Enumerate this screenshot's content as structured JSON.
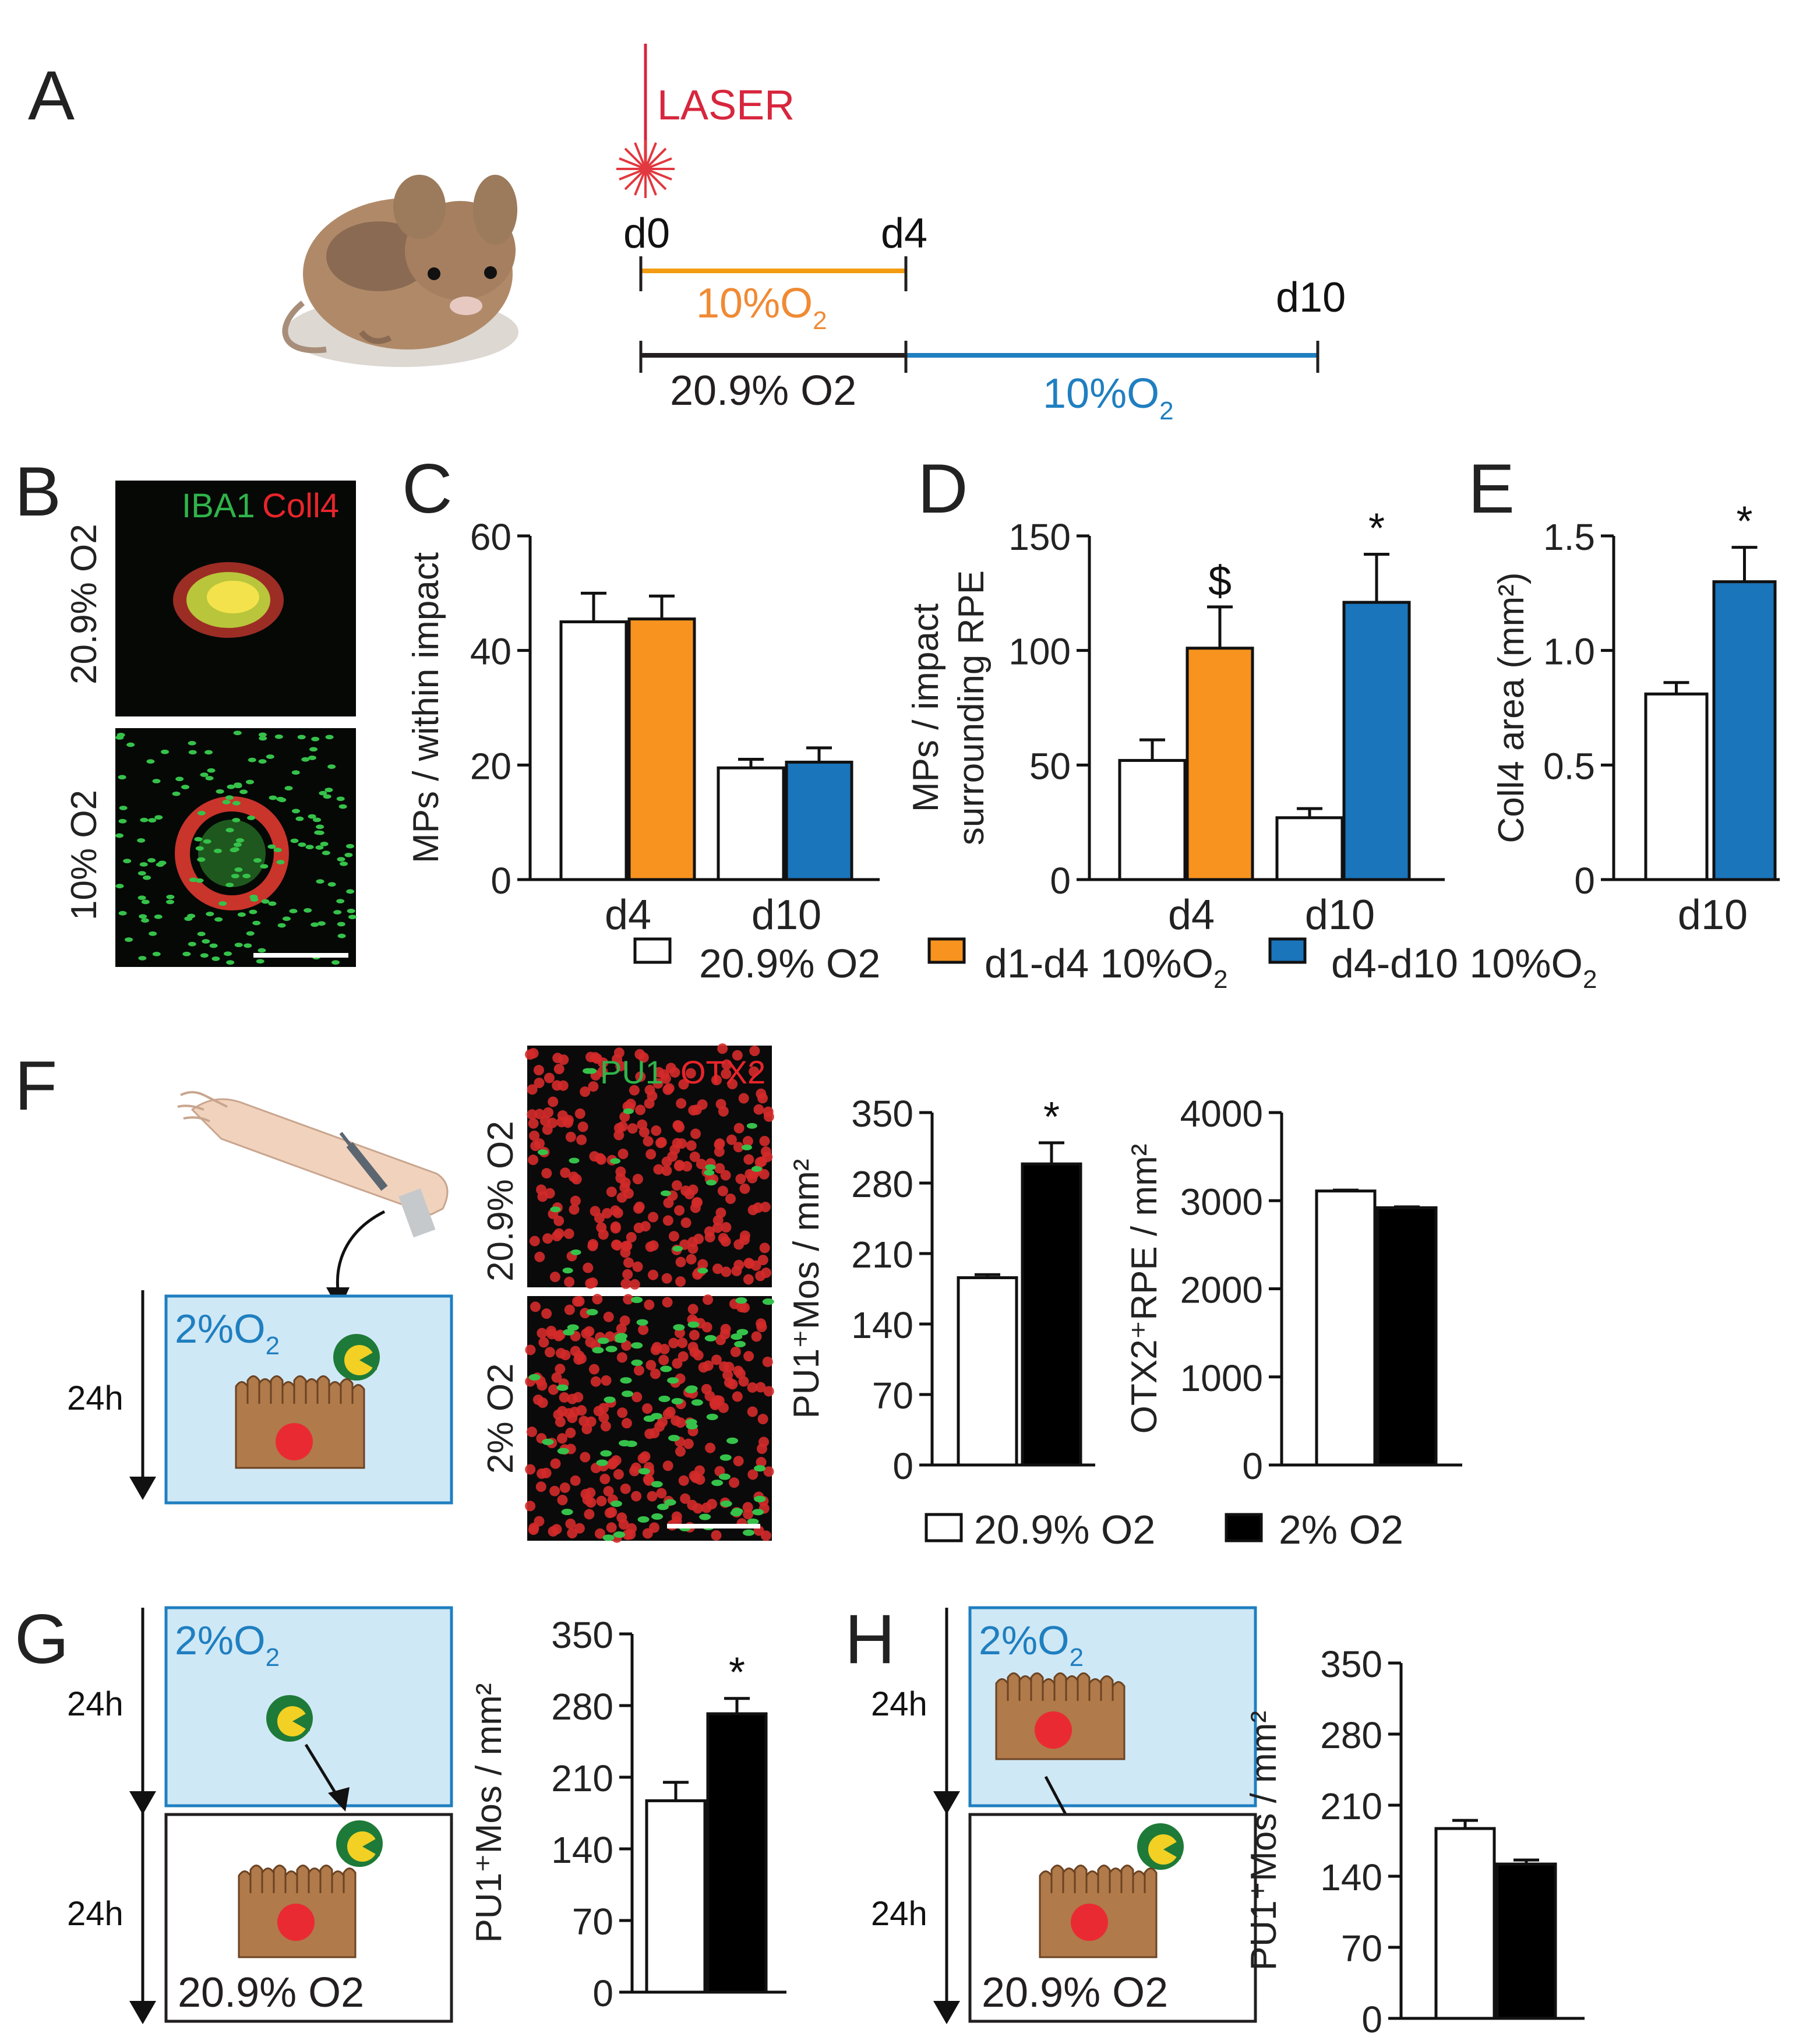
{
  "figure": {
    "panel_letters": [
      "A",
      "B",
      "C",
      "D",
      "E",
      "F",
      "G",
      "H"
    ]
  },
  "panel_a": {
    "laser_label": "LASER",
    "day_labels": [
      "d0",
      "d4",
      "d10"
    ],
    "top_line_label": "10%O",
    "top_line_sub": "2",
    "bottom_left_label": "20.9% O",
    "bottom_left_sub": "2",
    "bottom_right_label": "10%O",
    "bottom_right_sub": "2",
    "colors": {
      "laser": "#d7263d",
      "orange": "#f39c12",
      "blue": "#1f7fc0",
      "dark": "#231f20"
    }
  },
  "panel_b": {
    "stain_green": "IBA1",
    "stain_red": "Coll4",
    "row_top_label": "20.9% O2",
    "row_bottom_label": "10% O2"
  },
  "panel_f": {
    "stain_green": "PU1",
    "stain_red": "OTX2",
    "row_top_label": "20.9% O2",
    "row_bottom_label": "2% O2",
    "box_label": "2%O",
    "box_sub": "2",
    "time_label": "24h"
  },
  "panel_g": {
    "box_label": "2%O",
    "box_sub": "2",
    "bottom_box_label": "20.9% O2",
    "time_top": "24h",
    "time_bottom": "24h"
  },
  "panel_h": {
    "box_label": "2%O",
    "box_sub": "2",
    "bottom_box_label": "20.9% O2",
    "time_top": "24h",
    "time_bottom": "24h"
  },
  "legend_cde": {
    "items": [
      {
        "label": "20.9% O2",
        "color": "#ffffff"
      },
      {
        "label": "d1-d4 10%O",
        "sub": "2",
        "color": "#f7931e"
      },
      {
        "label": "d4-d10 10%O",
        "sub": "2",
        "color": "#1a75bb"
      }
    ]
  },
  "legend_f": {
    "items": [
      {
        "label": "20.9% O2",
        "color": "#ffffff"
      },
      {
        "label": "2% O2",
        "color": "#000000"
      }
    ]
  },
  "chart_data": [
    {
      "id": "C",
      "type": "bar",
      "ylabel": "MPs / within impact",
      "yticks": [
        0,
        20,
        40,
        60
      ],
      "ylim": [
        0,
        60
      ],
      "categories": [
        "d4",
        "d10"
      ],
      "bars": [
        {
          "value": 45,
          "error": 5,
          "color": "#ffffff"
        },
        {
          "value": 45.5,
          "error": 4,
          "color": "#f7931e"
        },
        {
          "value": 19.5,
          "error": 1.5,
          "color": "#ffffff"
        },
        {
          "value": 20.5,
          "error": 2.5,
          "color": "#1a75bb"
        }
      ],
      "annotations": []
    },
    {
      "id": "D",
      "type": "bar",
      "ylabel_lines": [
        "MPs / impact",
        "surrounding RPE"
      ],
      "yticks": [
        0,
        50,
        100,
        150
      ],
      "ylim": [
        0,
        150
      ],
      "categories": [
        "d4",
        "d10"
      ],
      "bars": [
        {
          "value": 52,
          "error": 9,
          "color": "#ffffff"
        },
        {
          "value": 101,
          "error": 18,
          "color": "#f7931e",
          "mark": "$"
        },
        {
          "value": 27,
          "error": 4,
          "color": "#ffffff"
        },
        {
          "value": 121,
          "error": 21,
          "color": "#1a75bb",
          "mark": "*"
        }
      ]
    },
    {
      "id": "E",
      "type": "bar",
      "ylabel": "Coll4 area (mm²)",
      "yticks": [
        "0",
        "0.5",
        "1.0",
        "1.5"
      ],
      "ylim": [
        0,
        1.5
      ],
      "categories": [
        "d10"
      ],
      "bars": [
        {
          "value": 0.81,
          "error": 0.05,
          "color": "#ffffff"
        },
        {
          "value": 1.3,
          "error": 0.15,
          "color": "#1a75bb",
          "mark": "*"
        }
      ]
    },
    {
      "id": "F1",
      "type": "bar",
      "ylabel": "PU1⁺Mos / mm²",
      "yticks": [
        0,
        70,
        140,
        210,
        280,
        350
      ],
      "ylim": [
        0,
        350
      ],
      "bars": [
        {
          "value": 186,
          "error": 3,
          "color": "#ffffff"
        },
        {
          "value": 299,
          "error": 21,
          "color": "#000000",
          "mark": "*"
        }
      ]
    },
    {
      "id": "F2",
      "type": "bar",
      "ylabel": "OTX2⁺RPE / mm²",
      "yticks": [
        0,
        1000,
        2000,
        3000,
        4000
      ],
      "ylim": [
        0,
        4000
      ],
      "bars": [
        {
          "value": 3110,
          "error": 10,
          "color": "#ffffff"
        },
        {
          "value": 2920,
          "error": 10,
          "color": "#000000"
        }
      ]
    },
    {
      "id": "G",
      "type": "bar",
      "ylabel": "PU1⁺Mos / mm²",
      "yticks": [
        0,
        70,
        140,
        210,
        280,
        350
      ],
      "ylim": [
        0,
        350
      ],
      "bars": [
        {
          "value": 187,
          "error": 18,
          "color": "#ffffff"
        },
        {
          "value": 272,
          "error": 15,
          "color": "#000000",
          "mark": "*"
        }
      ]
    },
    {
      "id": "H",
      "type": "bar",
      "ylabel": "PU1⁺Mos / mm²",
      "yticks": [
        0,
        70,
        140,
        210,
        280,
        350
      ],
      "ylim": [
        0,
        350
      ],
      "bars": [
        {
          "value": 187,
          "error": 8,
          "color": "#ffffff"
        },
        {
          "value": 152,
          "error": 4,
          "color": "#000000"
        }
      ]
    }
  ]
}
